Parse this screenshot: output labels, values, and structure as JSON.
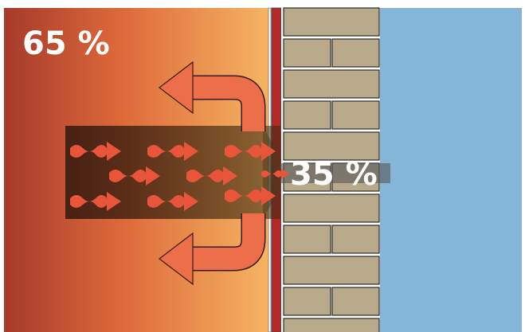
{
  "labels": {
    "inside": "65 %",
    "outside": "35 %"
  }
}
